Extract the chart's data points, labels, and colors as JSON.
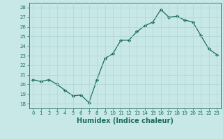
{
  "x": [
    0,
    1,
    2,
    3,
    4,
    5,
    6,
    7,
    8,
    9,
    10,
    11,
    12,
    13,
    14,
    15,
    16,
    17,
    18,
    19,
    20,
    21,
    22,
    23
  ],
  "y": [
    20.5,
    20.3,
    20.5,
    20.0,
    19.4,
    18.8,
    18.9,
    18.1,
    20.5,
    22.7,
    23.2,
    24.6,
    24.6,
    25.5,
    26.1,
    26.5,
    27.8,
    27.0,
    27.1,
    26.7,
    26.5,
    25.1,
    23.7,
    23.1
  ],
  "line_color": "#1a6b5a",
  "marker_color": "#1a6b5a",
  "bg_color": "#c8e8e8",
  "grid_color": "#b0d4d4",
  "xlabel": "Humidex (Indice chaleur)",
  "xlabel_fontsize": 7,
  "tick_fontsize": 5,
  "yticks": [
    18,
    19,
    20,
    21,
    22,
    23,
    24,
    25,
    26,
    27,
    28
  ],
  "xticks": [
    0,
    1,
    2,
    3,
    4,
    5,
    6,
    7,
    8,
    9,
    10,
    11,
    12,
    13,
    14,
    15,
    16,
    17,
    18,
    19,
    20,
    21,
    22,
    23
  ],
  "ylim": [
    17.5,
    28.5
  ],
  "xlim": [
    -0.5,
    23.5
  ]
}
